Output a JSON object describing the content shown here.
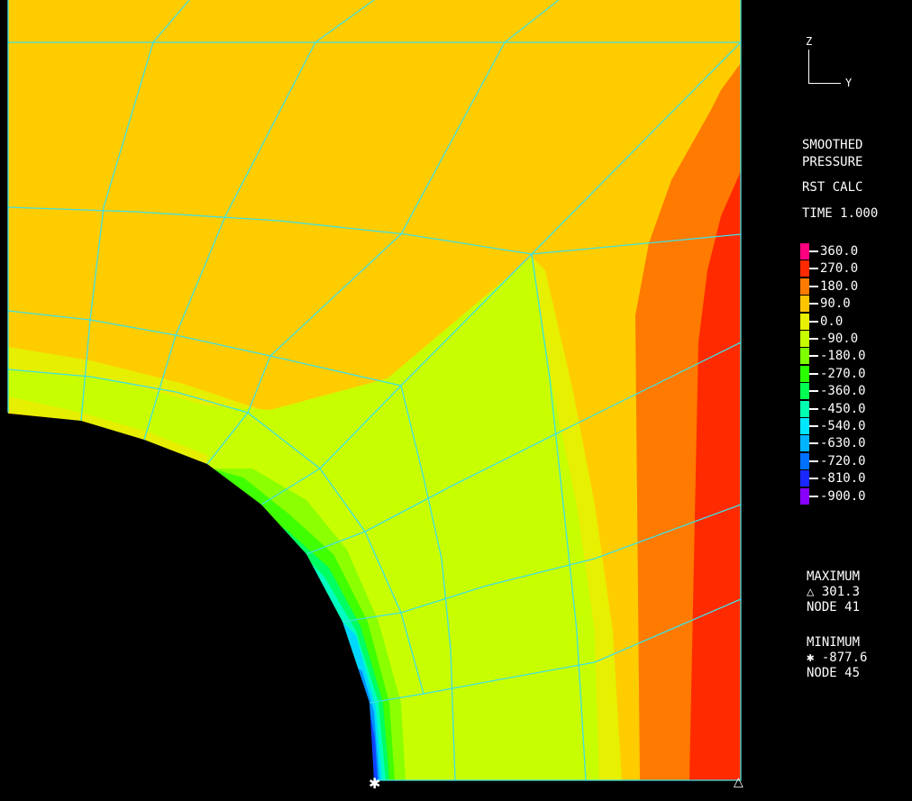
{
  "axes_triad": {
    "vertical_label": "Z",
    "horizontal_label": "Y"
  },
  "title": {
    "line1": "SMOOTHED",
    "line2": "PRESSURE",
    "line3": "RST CALC",
    "line4": "TIME 1.000"
  },
  "legend": {
    "levels": [
      {
        "value": "360.0",
        "color": "#ff0080"
      },
      {
        "value": "270.0",
        "color": "#ff2a00"
      },
      {
        "value": "180.0",
        "color": "#ff7a00"
      },
      {
        "value": "90.0",
        "color": "#ffc400"
      },
      {
        "value": "0.0",
        "color": "#e6f000"
      },
      {
        "value": "-90.0",
        "color": "#c8ff00"
      },
      {
        "value": "-180.0",
        "color": "#7dff00"
      },
      {
        "value": "-270.0",
        "color": "#2aff00"
      },
      {
        "value": "-360.0",
        "color": "#00ff50"
      },
      {
        "value": "-450.0",
        "color": "#00ffb0"
      },
      {
        "value": "-540.0",
        "color": "#00e8ff"
      },
      {
        "value": "-630.0",
        "color": "#00b4ff"
      },
      {
        "value": "-720.0",
        "color": "#0070ff"
      },
      {
        "value": "-810.0",
        "color": "#1a28ff"
      },
      {
        "value": "-900.0",
        "color": "#8a00ff"
      }
    ]
  },
  "extremes": {
    "max_label": "MAXIMUM",
    "max_value": "△ 301.3",
    "max_node": "NODE 41",
    "min_label": "MINIMUM",
    "min_value": "✱ -877.6",
    "min_node": "NODE 45"
  },
  "markers": {
    "max_marker": "△",
    "min_marker": "✱"
  },
  "colors": {
    "mesh": "#40e0e0",
    "background": "#000000"
  }
}
